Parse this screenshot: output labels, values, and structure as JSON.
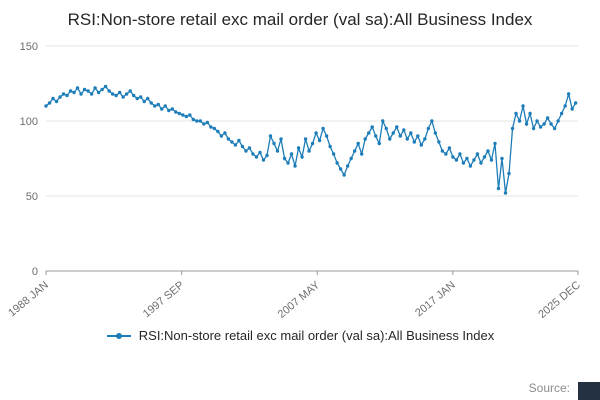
{
  "source_label": "Source:",
  "branding": {
    "corner_badge_color": "#233142"
  },
  "chart_data": {
    "type": "line",
    "title": "RSI:Non-store retail exc mail order (val sa):All Business Index",
    "xlabel": "",
    "ylabel": "",
    "ylim": [
      0,
      150
    ],
    "y_ticks": [
      0,
      50,
      100,
      150
    ],
    "x_domain_months": [
      0,
      455
    ],
    "x_ticks": [
      {
        "label": "1988 JAN",
        "month": 0
      },
      {
        "label": "1997 SEP",
        "month": 116
      },
      {
        "label": "2007 MAY",
        "month": 232
      },
      {
        "label": "2017 JAN",
        "month": 348
      },
      {
        "label": "2025 DEC",
        "month": 455
      }
    ],
    "grid": true,
    "legend_position": "bottom",
    "series": [
      {
        "name": "RSI:Non-store retail exc mail order (val sa):All Business Index",
        "color": "#1d7db9",
        "marker": "circle",
        "x_start_month": 0,
        "x_step_months": 3,
        "values": [
          110,
          112,
          115,
          113,
          116,
          118,
          117,
          120,
          119,
          122,
          118,
          121,
          120,
          118,
          122,
          119,
          121,
          123,
          120,
          118,
          117,
          119,
          116,
          118,
          120,
          117,
          115,
          116,
          113,
          115,
          112,
          110,
          111,
          108,
          110,
          107,
          108,
          106,
          105,
          104,
          103,
          104,
          101,
          100,
          100,
          98,
          99,
          96,
          95,
          93,
          90,
          92,
          88,
          86,
          84,
          87,
          83,
          80,
          82,
          78,
          76,
          79,
          74,
          77,
          90,
          85,
          80,
          88,
          75,
          72,
          78,
          70,
          82,
          76,
          88,
          80,
          85,
          92,
          87,
          95,
          90,
          83,
          78,
          72,
          68,
          64,
          70,
          75,
          80,
          85,
          78,
          88,
          92,
          96,
          90,
          85,
          100,
          95,
          88,
          92,
          96,
          90,
          94,
          88,
          92,
          86,
          90,
          84,
          88,
          95,
          100,
          92,
          86,
          80,
          78,
          82,
          76,
          74,
          78,
          72,
          75,
          70,
          74,
          78,
          72,
          76,
          80,
          74,
          85,
          55,
          75,
          52,
          65,
          95,
          105,
          100,
          110,
          98,
          105,
          95,
          100,
          96,
          98,
          102,
          98,
          95,
          100,
          105,
          110,
          118,
          108,
          112
        ]
      }
    ]
  }
}
